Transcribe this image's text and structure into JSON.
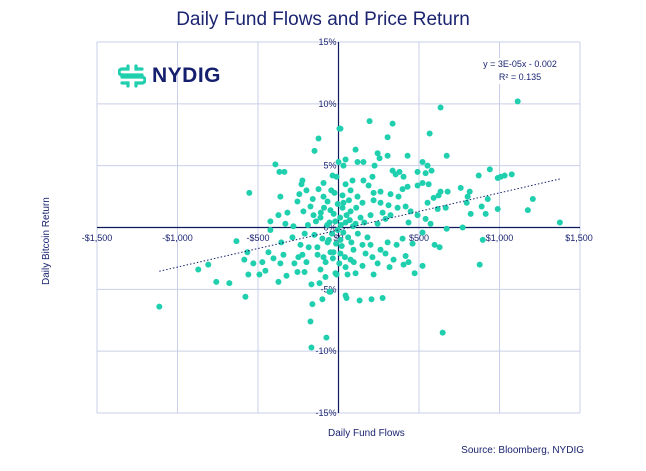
{
  "chart_data": {
    "type": "scatter",
    "title": "Daily Fund Flows and Price Return",
    "xlabel": "Daily Fund Flows",
    "ylabel": "Daily Bitcoin Return",
    "source": "Source: Bloomberg, NYDIG",
    "logo_text": "NYDIG",
    "xlim": [
      -1500,
      1500
    ],
    "ylim": [
      -15,
      15
    ],
    "x_ticks": [
      -1500,
      -1000,
      -500,
      0,
      500,
      1000,
      1500
    ],
    "x_tick_labels": [
      "-$1,500",
      "-$1,000",
      "-$500",
      "$0",
      "$500",
      "$1,000",
      "$1,500"
    ],
    "y_ticks": [
      15,
      10,
      5,
      0,
      -5,
      -10,
      -15
    ],
    "y_tick_labels": [
      "15%",
      "10%",
      "5%",
      "0%",
      "-5%",
      "-10%",
      "-15%"
    ],
    "grid": true,
    "trendline": {
      "slope_pct_per_usd": 0.003,
      "intercept_pct": -0.2,
      "x_range": [
        -1113,
        1375
      ],
      "style": "dotted"
    },
    "equation": "y = 3E-05x - 0.002",
    "r_squared": "R² = 0.135",
    "colors": {
      "points": "#1fcfae",
      "text": "#1b2470",
      "grid": "#c9cfe8",
      "axis": "#0f1a5c"
    },
    "points": [
      [
        -1113,
        -6.4
      ],
      [
        -871,
        -3.4
      ],
      [
        -809,
        -3.0
      ],
      [
        -759,
        -4.4
      ],
      [
        -678,
        -4.5
      ],
      [
        -634,
        -1.1
      ],
      [
        -578,
        -5.6
      ],
      [
        -566,
        -2.0
      ],
      [
        -585,
        -2.6
      ],
      [
        -560,
        -3.8
      ],
      [
        -529,
        -2.9
      ],
      [
        -491,
        -3.8
      ],
      [
        -473,
        -2.8
      ],
      [
        -454,
        -3.5
      ],
      [
        -435,
        -2.0
      ],
      [
        -404,
        -2.5
      ],
      [
        -373,
        -4.4
      ],
      [
        -361,
        -2.9
      ],
      [
        -355,
        -1.2
      ],
      [
        -323,
        -3.9
      ],
      [
        -342,
        -2.2
      ],
      [
        -286,
        -0.8
      ],
      [
        -274,
        -2.9
      ],
      [
        -255,
        -3.6
      ],
      [
        -249,
        -2.4
      ],
      [
        -236,
        -1.4
      ],
      [
        -224,
        -2.2
      ],
      [
        -211,
        -3.6
      ],
      [
        -199,
        -2.8
      ],
      [
        -168,
        -4.6
      ],
      [
        -162,
        -6.2
      ],
      [
        -174,
        -7.6
      ],
      [
        -168,
        -9.7
      ],
      [
        -75,
        -8.9
      ],
      [
        -100,
        -5.8
      ],
      [
        -56,
        -5.2
      ],
      [
        -118,
        -4.5
      ],
      [
        -112,
        -3.4
      ],
      [
        -81,
        -4.0
      ],
      [
        -93,
        -2.4
      ],
      [
        -131,
        -1.6
      ],
      [
        -50,
        -2.0
      ],
      [
        -19,
        -3.7
      ],
      [
        -68,
        -1.2
      ],
      [
        -423,
        -0.2
      ],
      [
        -330,
        0.3
      ],
      [
        -280,
        0.1
      ],
      [
        -554,
        2.8
      ],
      [
        -392,
        5.1
      ],
      [
        -367,
        4.5
      ],
      [
        -336,
        4.5
      ],
      [
        -361,
        2.5
      ],
      [
        -423,
        0.5
      ],
      [
        -373,
        1.0
      ],
      [
        -317,
        1.2
      ],
      [
        -230,
        3.5
      ],
      [
        -224,
        3.8
      ],
      [
        -243,
        2.7
      ],
      [
        -199,
        3.0
      ],
      [
        -255,
        2.1
      ],
      [
        -218,
        1.3
      ],
      [
        -149,
        6.2
      ],
      [
        -124,
        7.2
      ],
      [
        -174,
        1.7
      ],
      [
        -155,
        1.0
      ],
      [
        -124,
        3.1
      ],
      [
        -93,
        2.5
      ],
      [
        -68,
        2.1
      ],
      [
        -37,
        4.2
      ],
      [
        -12,
        4.1
      ],
      [
        0,
        5.3
      ],
      [
        6,
        8.0
      ],
      [
        -93,
        3.6
      ],
      [
        -112,
        0.8
      ],
      [
        -50,
        1.4
      ],
      [
        -56,
        0.4
      ],
      [
        12,
        8.0
      ],
      [
        193,
        8.6
      ],
      [
        336,
        8.4
      ],
      [
        305,
        7.3
      ],
      [
        634,
        9.7
      ],
      [
        1113,
        10.2
      ],
      [
        566,
        7.6
      ],
      [
        672,
        5.8
      ],
      [
        106,
        6.3
      ],
      [
        243,
        6.0
      ],
      [
        255,
        5.6
      ],
      [
        305,
        5.8
      ],
      [
        429,
        5.8
      ],
      [
        118,
        5.3
      ],
      [
        155,
        5.3
      ],
      [
        224,
        5.0
      ],
      [
        44,
        5.5
      ],
      [
        31,
        5.0
      ],
      [
        336,
        4.6
      ],
      [
        355,
        4.3
      ],
      [
        379,
        4.5
      ],
      [
        404,
        4.1
      ],
      [
        491,
        4.5
      ],
      [
        522,
        5.3
      ],
      [
        553,
        5.0
      ],
      [
        541,
        4.4
      ],
      [
        578,
        4.6
      ],
      [
        522,
        3.6
      ],
      [
        560,
        3.5
      ],
      [
        871,
        4.2
      ],
      [
        940,
        4.7
      ],
      [
        989,
        4.0
      ],
      [
        1008,
        4.1
      ],
      [
        1032,
        4.2
      ],
      [
        1076,
        4.3
      ],
      [
        759,
        3.2
      ],
      [
        815,
        2.9
      ],
      [
        802,
        2.5
      ],
      [
        796,
        2.0
      ],
      [
        927,
        2.3
      ],
      [
        889,
        1.7
      ],
      [
        821,
        1.1
      ],
      [
        914,
        1.1
      ],
      [
        989,
        1.5
      ],
      [
        1207,
        2.3
      ],
      [
        1176,
        1.4
      ],
      [
        1375,
        0.4
      ],
      [
        678,
        2.9
      ],
      [
        634,
        2.9
      ],
      [
        622,
        2.6
      ],
      [
        591,
        2.4
      ],
      [
        553,
        2.0
      ],
      [
        666,
        1.6
      ],
      [
        616,
        1.5
      ],
      [
        771,
        0.0
      ],
      [
        491,
        3.4
      ],
      [
        429,
        3.3
      ],
      [
        398,
        3.1
      ],
      [
        373,
        2.5
      ],
      [
        323,
        2.7
      ],
      [
        261,
        2.9
      ],
      [
        218,
        2.8
      ],
      [
        187,
        3.4
      ],
      [
        211,
        4.1
      ],
      [
        155,
        3.8
      ],
      [
        87,
        3.8
      ],
      [
        44,
        3.5
      ],
      [
        75,
        3.0
      ],
      [
        118,
        2.5
      ],
      [
        149,
        2.0
      ],
      [
        218,
        2.2
      ],
      [
        261,
        2.0
      ],
      [
        311,
        1.8
      ],
      [
        367,
        1.6
      ],
      [
        417,
        1.7
      ],
      [
        448,
        1.3
      ],
      [
        491,
        1.0
      ],
      [
        323,
        1.0
      ],
      [
        274,
        1.2
      ],
      [
        199,
        1.0
      ],
      [
        137,
        0.8
      ],
      [
        75,
        1.3
      ],
      [
        25,
        1.6
      ],
      [
        31,
        2.0
      ],
      [
        44,
        0.4
      ],
      [
        106,
        0.3
      ],
      [
        243,
        0.3
      ],
      [
        292,
        0.7
      ],
      [
        435,
        0.4
      ],
      [
        541,
        0.7
      ],
      [
        572,
        0.3
      ],
      [
        896,
        -1.0
      ],
      [
        672,
        -0.1
      ],
      [
        597,
        -1.4
      ],
      [
        628,
        -1.6
      ],
      [
        877,
        -3.0
      ],
      [
        647,
        -8.5
      ],
      [
        522,
        -3.1
      ],
      [
        473,
        -3.7
      ],
      [
        435,
        -2.8
      ],
      [
        404,
        -3.0
      ],
      [
        417,
        -2.3
      ],
      [
        342,
        -2.6
      ],
      [
        317,
        -3.2
      ],
      [
        361,
        -1.4
      ],
      [
        398,
        -0.9
      ],
      [
        460,
        -1.3
      ],
      [
        522,
        -0.4
      ],
      [
        305,
        -1.2
      ],
      [
        243,
        -2.9
      ],
      [
        218,
        -3.8
      ],
      [
        211,
        -2.4
      ],
      [
        149,
        -3.1
      ],
      [
        106,
        -3.7
      ],
      [
        56,
        -3.8
      ],
      [
        44,
        -3.2
      ],
      [
        -12,
        -3.8
      ],
      [
        44,
        -5.5
      ],
      [
        50,
        -5.7
      ],
      [
        131,
        -5.9
      ],
      [
        205,
        -5.8
      ],
      [
        274,
        -5.7
      ],
      [
        -50,
        -5.2
      ],
      [
        149,
        -1.4
      ],
      [
        168,
        -2.1
      ],
      [
        93,
        -1.8
      ],
      [
        75,
        -2.6
      ],
      [
        199,
        -1.4
      ],
      [
        261,
        -1.8
      ],
      [
        292,
        -2.1
      ],
      [
        12,
        -1.0
      ],
      [
        12,
        -2.1
      ],
      [
        -31,
        -2.0
      ],
      [
        -20,
        0.5
      ],
      [
        10,
        0.8
      ],
      [
        -40,
        -0.5
      ],
      [
        30,
        -0.4
      ],
      [
        -70,
        0.2
      ],
      [
        60,
        -0.8
      ],
      [
        -100,
        -0.9
      ],
      [
        90,
        0.1
      ],
      [
        -140,
        0.5
      ],
      [
        120,
        -0.5
      ],
      [
        -30,
        1.1
      ],
      [
        20,
        -1.5
      ],
      [
        -60,
        -1.0
      ],
      [
        50,
        1.0
      ],
      [
        -90,
        1.6
      ],
      [
        80,
        -1.2
      ],
      [
        -5,
        -0.2
      ],
      [
        15,
        0.2
      ],
      [
        -150,
        -0.6
      ],
      [
        160,
        0.4
      ],
      [
        -190,
        0.2
      ],
      [
        180,
        -0.8
      ],
      [
        -210,
        -0.5
      ],
      [
        -25,
        2.8
      ],
      [
        25,
        2.6
      ],
      [
        -45,
        3.0
      ],
      [
        65,
        2.2
      ],
      [
        -80,
        -2.8
      ],
      [
        95,
        -2.8
      ],
      [
        -130,
        -2.2
      ],
      [
        5,
        -2.9
      ],
      [
        -15,
        -1.3
      ],
      [
        40,
        -2.4
      ],
      [
        -110,
        1.2
      ],
      [
        110,
        1.6
      ],
      [
        -160,
        2.3
      ],
      [
        -185,
        -1.6
      ],
      [
        -5,
        1.9
      ],
      [
        -35,
        -2.5
      ],
      [
        70,
        0.6
      ]
    ]
  }
}
